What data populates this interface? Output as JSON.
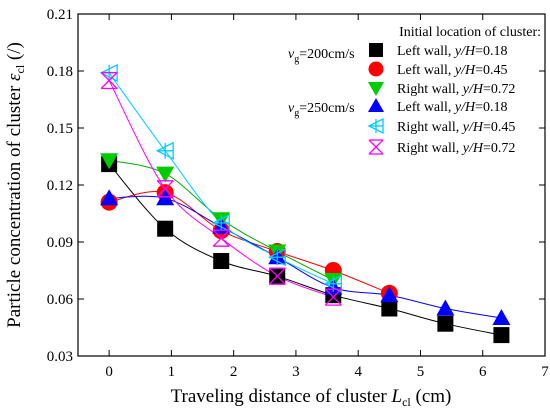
{
  "chart_data": {
    "type": "scatter",
    "xlabel": "Traveling distance of cluster ",
    "xlabel_sym": "L",
    "xlabel_sub": "cl",
    "xlabel_unit": " (cm)",
    "ylabel": "Particle concentration of cluster ",
    "ylabel_sym": "ε",
    "ylabel_sub": "cl",
    "ylabel_unit": " (/)",
    "xlim": [
      -0.5,
      7
    ],
    "ylim": [
      0.03,
      0.21
    ],
    "x_ticks": [
      "0",
      "1",
      "2",
      "3",
      "4",
      "5",
      "6",
      "7"
    ],
    "y_ticks": [
      "0.03",
      "0.06",
      "0.09",
      "0.12",
      "0.15",
      "0.18",
      "0.21"
    ],
    "x_tick_values": [
      0,
      1,
      2,
      3,
      4,
      5,
      6,
      7
    ],
    "y_tick_values": [
      0.03,
      0.06,
      0.09,
      0.12,
      0.15,
      0.18,
      0.21
    ],
    "grid": false,
    "legend": {
      "placement": "top-right",
      "title": "Initial location of cluster:",
      "group1_label": "=200cm/s",
      "group2_label": "=250cm/s",
      "vg_symbol": "v",
      "vg_sub": "g"
    },
    "series": [
      {
        "name_prefix": "Left   wall, ",
        "name_ratio": "y/H",
        "name_value": "=0.18",
        "marker": "square",
        "color": "#000000",
        "line": "#000000",
        "x": [
          0,
          0.9,
          1.8,
          2.7,
          3.6,
          4.5,
          5.4,
          6.3
        ],
        "y": [
          0.131,
          0.097,
          0.08,
          0.072,
          0.062,
          0.055,
          0.047,
          0.041
        ]
      },
      {
        "name_prefix": "Left   wall, ",
        "name_ratio": "y/H",
        "name_value": "=0.45",
        "marker": "circle",
        "color": "#ff0000",
        "line": "#ff0000",
        "x": [
          0,
          0.9,
          1.8,
          2.7,
          3.6,
          4.5
        ],
        "y": [
          0.111,
          0.116,
          0.096,
          0.085,
          0.075,
          0.063
        ]
      },
      {
        "name_prefix": "Right wall, ",
        "name_ratio": "y/H",
        "name_value": "=0.72",
        "marker": "triangle-down",
        "color": "#00cc00",
        "line": "#00aa00",
        "x": [
          0,
          0.9,
          1.8,
          2.7,
          3.6
        ],
        "y": [
          0.133,
          0.126,
          0.102,
          0.085,
          0.07
        ]
      },
      {
        "name_prefix": "Left   wall, ",
        "name_ratio": "y/H",
        "name_value": "=0.18",
        "marker": "triangle-up",
        "color": "#0000ff",
        "line": "#0000ff",
        "x": [
          0,
          0.9,
          1.8,
          2.7,
          3.6,
          4.5,
          5.4,
          6.3
        ],
        "y": [
          0.113,
          0.113,
          0.098,
          0.082,
          0.066,
          0.062,
          0.055,
          0.05
        ]
      },
      {
        "name_prefix": "Right wall, ",
        "name_ratio": "y/H",
        "name_value": "=0.45",
        "marker": "triangle-left",
        "color": "#00ccff",
        "line": "#00ccff",
        "x": [
          0,
          0.9,
          1.8,
          2.7,
          3.6
        ],
        "y": [
          0.179,
          0.138,
          0.1,
          0.082,
          0.068
        ]
      },
      {
        "name_prefix": "Right wall, ",
        "name_ratio": "y/H",
        "name_value": "=0.72",
        "marker": "x",
        "color": "#ff00ff",
        "line": "#ff00ff",
        "x": [
          0,
          0.9,
          1.8,
          2.7,
          3.6
        ],
        "y": [
          0.175,
          0.118,
          0.092,
          0.072,
          0.061
        ]
      }
    ]
  }
}
